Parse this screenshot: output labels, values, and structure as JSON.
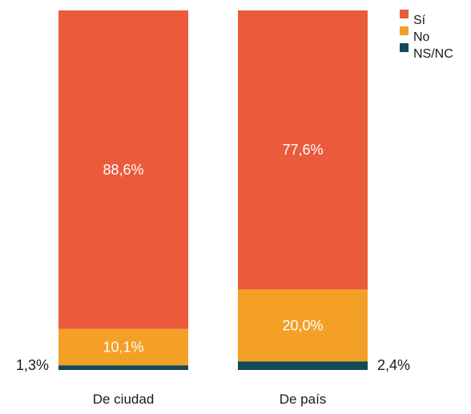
{
  "chart_data": {
    "type": "bar",
    "stacked": true,
    "percent_stacked": true,
    "categories": [
      "De ciudad",
      "De país"
    ],
    "series": [
      {
        "name": "Sí",
        "values": [
          88.6,
          77.6
        ],
        "labels": [
          "88,6%",
          "77,6%"
        ],
        "color": "#E95B3B"
      },
      {
        "name": "No",
        "values": [
          10.1,
          20.0
        ],
        "labels": [
          "10,1%",
          "20,0%"
        ],
        "color": "#F4A027"
      },
      {
        "name": "NS/NC",
        "values": [
          1.3,
          2.4
        ],
        "labels": [
          "1,3%",
          "2,4%"
        ],
        "color": "#124A55"
      }
    ],
    "ylim": [
      0,
      100
    ],
    "grid": false,
    "legend_position": "top-right"
  }
}
